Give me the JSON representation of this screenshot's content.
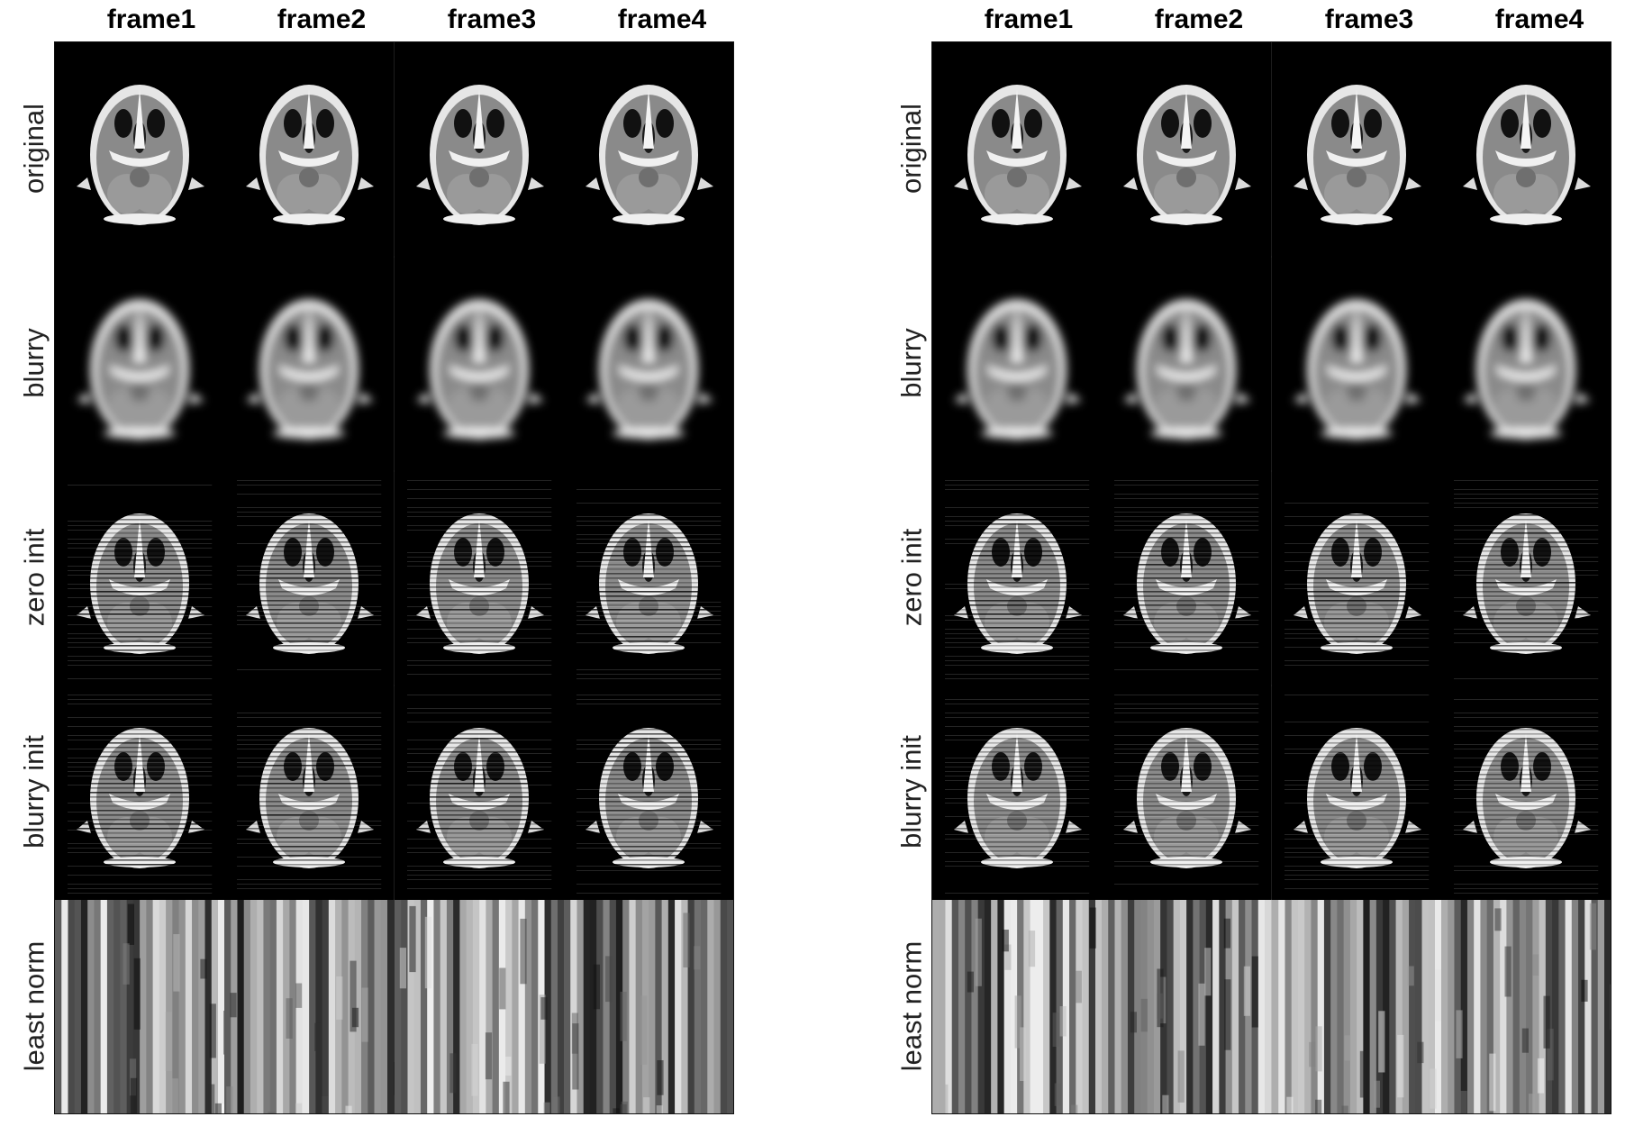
{
  "figure": {
    "panels": [
      {
        "id": "left",
        "columns": [
          "frame1",
          "frame2",
          "frame3",
          "frame4"
        ],
        "rows": [
          "original",
          "blurry",
          "zero init",
          "blurry init",
          "least norm"
        ]
      },
      {
        "id": "right",
        "columns": [
          "frame1",
          "frame2",
          "frame3",
          "frame4"
        ],
        "rows": [
          "original",
          "blurry",
          "zero init",
          "blurry init",
          "least norm"
        ]
      }
    ]
  },
  "colors": {
    "background": "#ffffff",
    "tile_background": "#000000",
    "text": "#000000"
  },
  "tile_kinds": {
    "original": "axial-brain-mri",
    "blurry": "axial-brain-mri-blurred",
    "zero init": "axial-brain-mri-striped",
    "blurry init": "axial-brain-mri-striped",
    "least norm": "vertical-stripe-noise"
  }
}
